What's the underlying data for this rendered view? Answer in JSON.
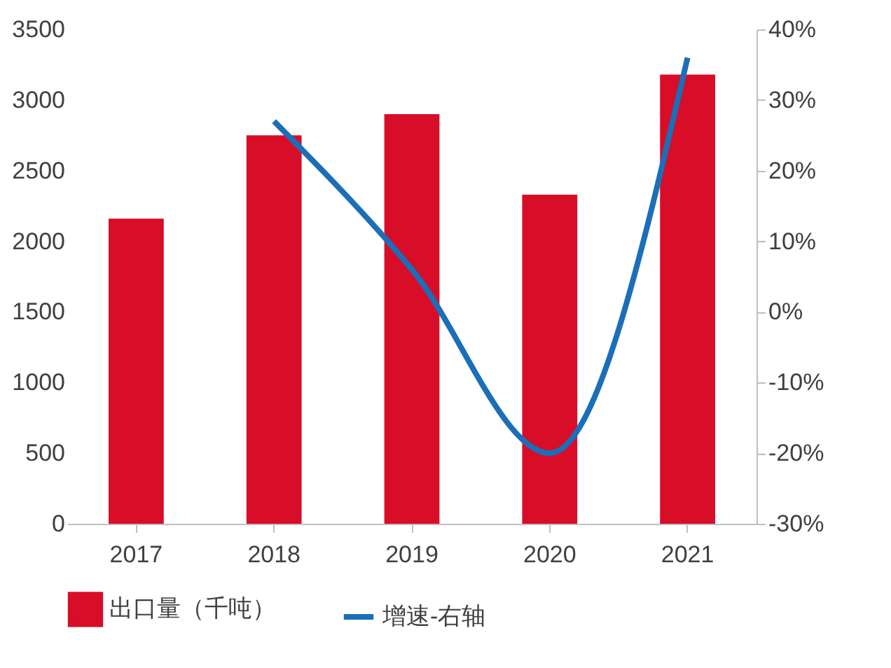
{
  "chart_data": {
    "type": "bar",
    "categories": [
      "2017",
      "2018",
      "2019",
      "2020",
      "2021"
    ],
    "series": [
      {
        "name": "出口量（千吨）",
        "color": "#d80d28",
        "values": [
          2160,
          2750,
          2900,
          2330,
          3180
        ]
      },
      {
        "name": "增速-右轴",
        "type": "line",
        "axis": "y2",
        "color": "#1a6fb8",
        "values": [
          null,
          27,
          6,
          -20,
          36
        ]
      }
    ],
    "ylim": [
      0,
      3500
    ],
    "yticks": [
      0,
      500,
      1000,
      1500,
      2000,
      2500,
      3000,
      3500
    ],
    "y2lim": [
      -30,
      40
    ],
    "y2ticks": [
      {
        "value": -30,
        "label": "-30%"
      },
      {
        "value": -20,
        "label": "-20%"
      },
      {
        "value": -10,
        "label": "-10%"
      },
      {
        "value": 0,
        "label": "0%"
      },
      {
        "value": 10,
        "label": "10%"
      },
      {
        "value": 20,
        "label": "20%"
      },
      {
        "value": 30,
        "label": "30%"
      },
      {
        "value": 40,
        "label": "40%"
      }
    ],
    "grid": false,
    "legend": "bottom",
    "line_style": "solid"
  }
}
